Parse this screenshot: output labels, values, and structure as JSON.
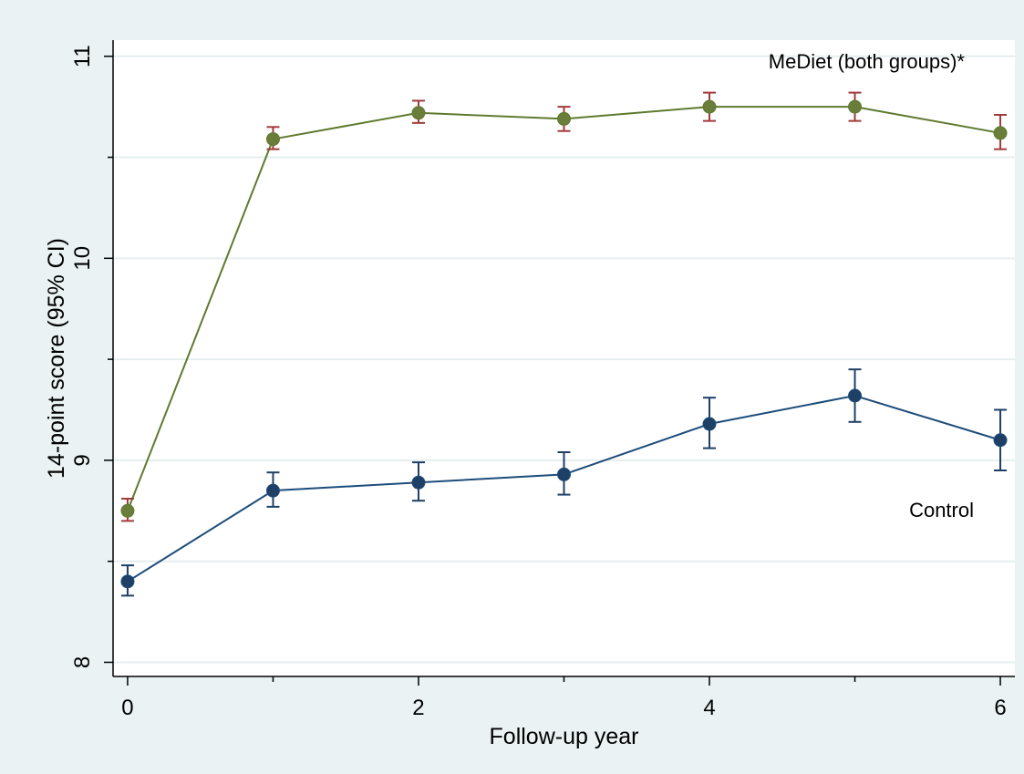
{
  "chart_data": {
    "type": "line",
    "title": "",
    "xlabel": "Follow-up year",
    "ylabel": "14-point score (95% CI)",
    "xlim": [
      -0.1,
      6.1
    ],
    "ylim": [
      7.93,
      11.08
    ],
    "x_ticks": [
      0,
      2,
      4,
      6
    ],
    "y_ticks": [
      8,
      9,
      10,
      11
    ],
    "grid": true,
    "x": [
      0,
      1,
      2,
      3,
      4,
      5,
      6
    ],
    "series": [
      {
        "name": "MeDiet (both groups)*",
        "color": "#5f7a2f",
        "marker_color": "#6b7d3a",
        "errorbar_color": "#a33a3a",
        "values": [
          8.75,
          10.59,
          10.72,
          10.69,
          10.75,
          10.75,
          10.62
        ],
        "ci_low": [
          8.7,
          10.54,
          10.67,
          10.63,
          10.68,
          10.68,
          10.54
        ],
        "ci_high": [
          8.81,
          10.65,
          10.78,
          10.75,
          10.82,
          10.82,
          10.71
        ]
      },
      {
        "name": "Control",
        "color": "#1e4d7b",
        "marker_color": "#1e3f66",
        "errorbar_color": "#1e3f66",
        "values": [
          8.4,
          8.85,
          8.89,
          8.93,
          9.18,
          9.32,
          9.1
        ],
        "ci_low": [
          8.33,
          8.77,
          8.8,
          8.83,
          9.06,
          9.19,
          8.95
        ],
        "ci_high": [
          8.48,
          8.94,
          8.99,
          9.04,
          9.31,
          9.45,
          9.25
        ]
      }
    ],
    "colors": {
      "page_background": "#eaf2f3",
      "plot_background": "#ffffff",
      "gridline": "#e6eeef",
      "axis": "#000000"
    }
  }
}
